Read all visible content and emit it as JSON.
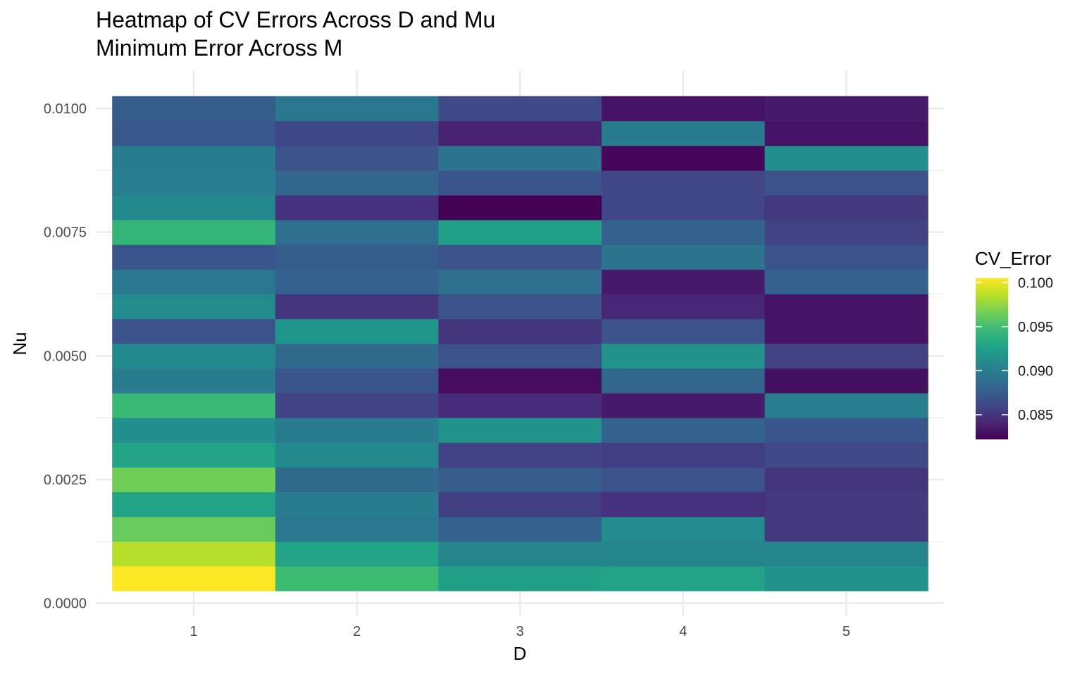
{
  "chart_data": {
    "type": "heatmap",
    "title": "Heatmap of CV Errors Across D and Mu",
    "subtitle": "Minimum Error Across M",
    "xlabel": "D",
    "ylabel": "Nu",
    "x_categories": [
      1,
      2,
      3,
      4,
      5
    ],
    "x_ticks": [
      "1",
      "2",
      "3",
      "4",
      "5"
    ],
    "y_values": [
      0.0005,
      0.001,
      0.0015,
      0.002,
      0.0025,
      0.003,
      0.0035,
      0.004,
      0.0045,
      0.005,
      0.0055,
      0.006,
      0.0065,
      0.007,
      0.0075,
      0.008,
      0.0085,
      0.009,
      0.0095,
      0.01
    ],
    "y_ticks": [
      "0.0000",
      "0.0025",
      "0.0050",
      "0.0075",
      "0.0100"
    ],
    "y_tick_values": [
      0,
      0.0025,
      0.005,
      0.0075,
      0.01
    ],
    "ylim": [
      0,
      0.0101
    ],
    "grid": true,
    "values": [
      [
        0.1005,
        0.0948,
        0.0925,
        0.0928,
        0.0915
      ],
      [
        0.0985,
        0.0928,
        0.0905,
        0.0905,
        0.0905
      ],
      [
        0.0962,
        0.0895,
        0.0878,
        0.091,
        0.0852
      ],
      [
        0.0928,
        0.0898,
        0.0855,
        0.0848,
        0.0852
      ],
      [
        0.0965,
        0.0885,
        0.0875,
        0.0868,
        0.085
      ],
      [
        0.0928,
        0.0908,
        0.0858,
        0.0855,
        0.0862
      ],
      [
        0.0912,
        0.0898,
        0.0915,
        0.088,
        0.087
      ],
      [
        0.0945,
        0.0858,
        0.0845,
        0.0835,
        0.09
      ],
      [
        0.0898,
        0.087,
        0.0828,
        0.0882,
        0.083
      ],
      [
        0.0908,
        0.0885,
        0.0868,
        0.0915,
        0.0858
      ],
      [
        0.0868,
        0.0918,
        0.085,
        0.0868,
        0.0832
      ],
      [
        0.091,
        0.085,
        0.0868,
        0.0842,
        0.0832
      ],
      [
        0.0895,
        0.0878,
        0.0888,
        0.0835,
        0.088
      ],
      [
        0.087,
        0.0875,
        0.0868,
        0.0892,
        0.0868
      ],
      [
        0.0942,
        0.0888,
        0.0925,
        0.088,
        0.0858
      ],
      [
        0.0908,
        0.0848,
        0.0822,
        0.086,
        0.0852
      ],
      [
        0.09,
        0.0882,
        0.087,
        0.086,
        0.0868
      ],
      [
        0.0898,
        0.0868,
        0.0892,
        0.0825,
        0.0912
      ],
      [
        0.0872,
        0.086,
        0.084,
        0.0898,
        0.0832
      ],
      [
        0.0875,
        0.0895,
        0.0862,
        0.0832,
        0.0835
      ]
    ],
    "colorscale": "viridis",
    "color_range": [
      0.0822,
      0.1005
    ],
    "legend": {
      "title": "CV_Error",
      "placement": "right",
      "ticks": [
        "0.100",
        "0.095",
        "0.090",
        "0.085"
      ],
      "tick_values": [
        0.1,
        0.095,
        0.09,
        0.085
      ]
    }
  }
}
